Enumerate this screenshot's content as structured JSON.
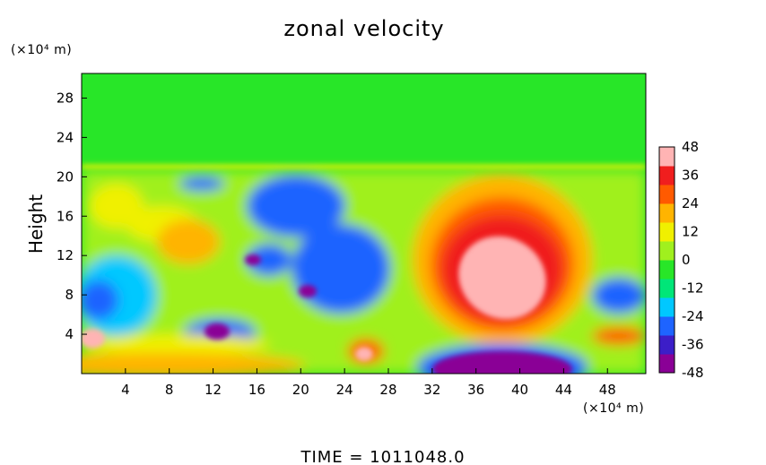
{
  "chart_data": {
    "type": "heatmap",
    "title": "zonal velocity",
    "ylabel": "Height",
    "x_unit_label": "(×10⁴ m)",
    "y_unit_label": "(×10⁴ m)",
    "xlim": [
      0,
      51.5
    ],
    "ylim": [
      0,
      30.5
    ],
    "x_ticks": [
      4,
      8,
      12,
      16,
      20,
      24,
      28,
      32,
      36,
      40,
      44,
      48
    ],
    "y_ticks": [
      4,
      8,
      12,
      16,
      20,
      24,
      28
    ],
    "colorbar": {
      "ticks": [
        48,
        36,
        24,
        12,
        0,
        -12,
        -24,
        -36,
        -48
      ],
      "range": [
        -48,
        48
      ],
      "colors": [
        "#8a0096",
        "#3c1ec8",
        "#1e64ff",
        "#00c8ff",
        "#00e678",
        "#28e628",
        "#a0f01e",
        "#f0f000",
        "#ffb400",
        "#ff5a00",
        "#f01e1e",
        "#ffb4b4"
      ]
    },
    "features": [
      {
        "label": "upper layer near-zero flow",
        "x": [
          0,
          51.5
        ],
        "y": [
          20.5,
          30.5
        ],
        "value": 0
      },
      {
        "label": "positive jet core",
        "x": [
          30,
          46
        ],
        "y": [
          5,
          18
        ],
        "value": 50
      },
      {
        "label": "negative surface cell",
        "x": [
          30,
          46
        ],
        "y": [
          0,
          3
        ],
        "value": -48
      },
      {
        "label": "negative region left",
        "x": [
          14,
          28
        ],
        "y": [
          4,
          20
        ],
        "value": -30
      }
    ],
    "footer": "TIME  =  1011048.0"
  }
}
